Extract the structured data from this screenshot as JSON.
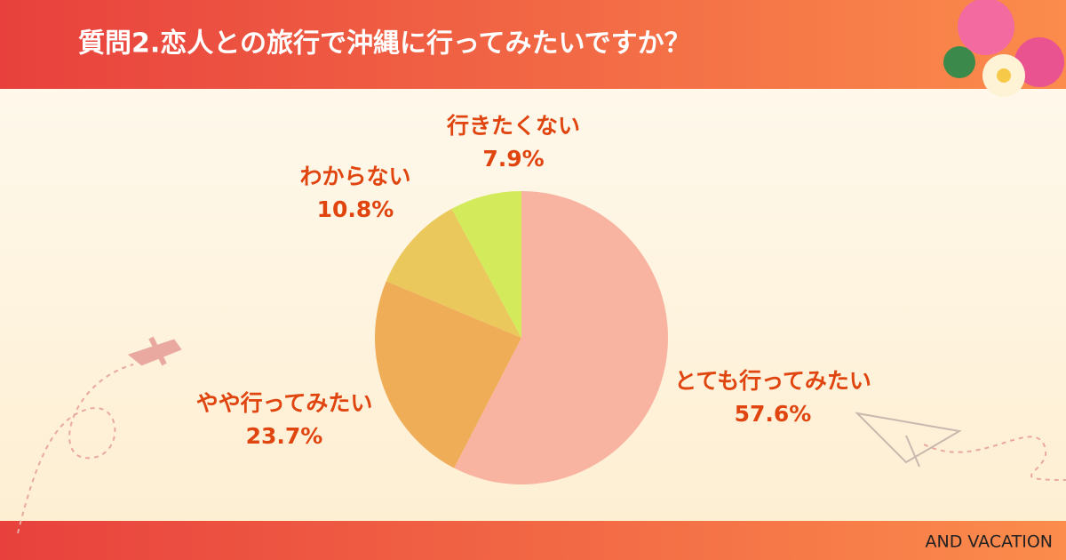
{
  "chart_data": {
    "type": "pie",
    "title": "質問2.恋人との旅行で沖縄に行ってみたいですか？",
    "categories": [
      "とても行ってみたい",
      "やや行ってみたい",
      "わからない",
      "行きたくない"
    ],
    "values": [
      57.6,
      23.7,
      10.8,
      7.9
    ],
    "value_labels": [
      "57.6%",
      "23.7%",
      "10.8%",
      "7.9%"
    ],
    "colors": [
      "#f8b4a1",
      "#efad58",
      "#ebc85c",
      "#d3ea5b"
    ],
    "footer": "AND VACATION"
  }
}
